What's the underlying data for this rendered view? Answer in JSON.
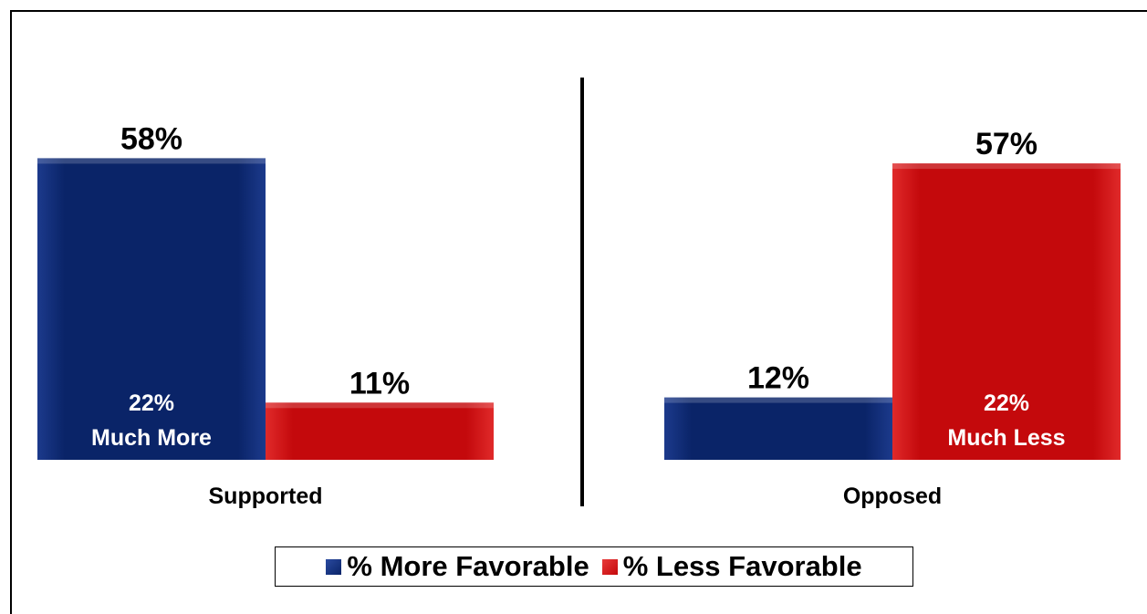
{
  "chart_data": {
    "type": "bar",
    "categories": [
      "Supported",
      "Opposed"
    ],
    "series": [
      {
        "name": "% More Favorable",
        "color": "#0a2468",
        "values": [
          58,
          12
        ]
      },
      {
        "name": "% Less Favorable",
        "color": "#c4090c",
        "values": [
          11,
          57
        ]
      }
    ],
    "value_labels": [
      [
        "58%",
        "12%"
      ],
      [
        "11%",
        "57%"
      ]
    ],
    "annotations": [
      {
        "category": "Supported",
        "series": "% More Favorable",
        "lines": [
          "22%",
          "Much More"
        ]
      },
      {
        "category": "Opposed",
        "series": "% Less Favorable",
        "lines": [
          "22%",
          "Much Less"
        ]
      }
    ],
    "ylim": [
      0,
      60
    ],
    "grid": false,
    "legend": "bottom-center",
    "divider_between_categories": true
  }
}
